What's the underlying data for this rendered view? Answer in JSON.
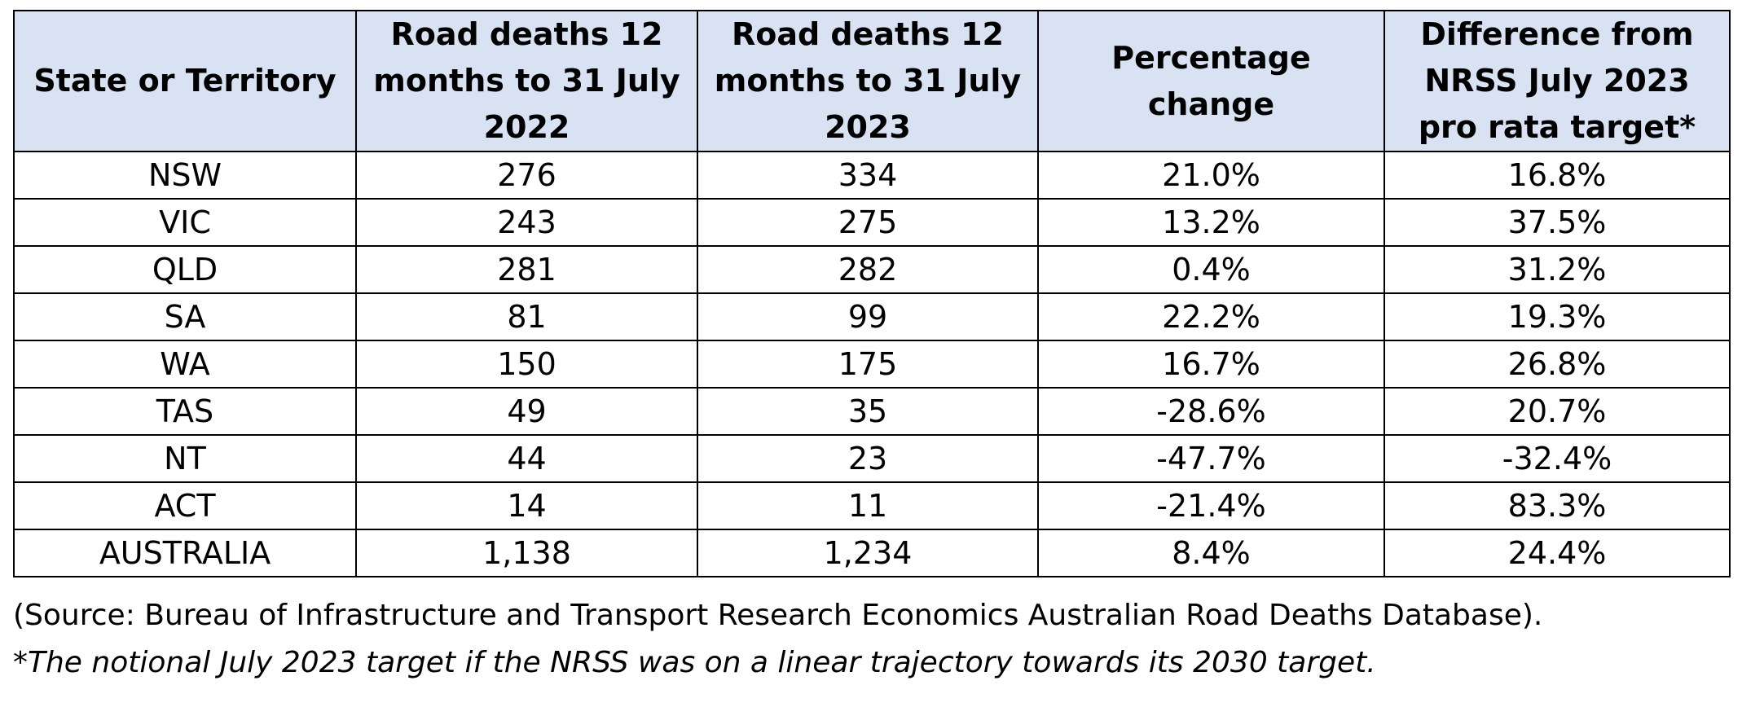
{
  "table": {
    "headers": [
      "State or Territory",
      "Road deaths 12 months to 31 July 2022",
      "Road deaths 12 months to 31 July 2023",
      "Percentage change",
      "Difference from NRSS July 2023 pro rata target*"
    ],
    "rows": [
      [
        "NSW",
        "276",
        "334",
        "21.0%",
        "16.8%"
      ],
      [
        "VIC",
        "243",
        "275",
        "13.2%",
        "37.5%"
      ],
      [
        "QLD",
        "281",
        "282",
        "0.4%",
        "31.2%"
      ],
      [
        "SA",
        "81",
        "99",
        "22.2%",
        "19.3%"
      ],
      [
        "WA",
        "150",
        "175",
        "16.7%",
        "26.8%"
      ],
      [
        "TAS",
        "49",
        "35",
        "-28.6%",
        "20.7%"
      ],
      [
        "NT",
        "44",
        "23",
        "-47.7%",
        "-32.4%"
      ],
      [
        "ACT",
        "14",
        "11",
        "-21.4%",
        "83.3%"
      ],
      [
        "AUSTRALIA",
        "1,138",
        "1,234",
        "8.4%",
        "24.4%"
      ]
    ]
  },
  "notes": {
    "source": "(Source: Bureau of Infrastructure and Transport Research Economics Australian Road Deaths Database).",
    "footnote": "*The notional July 2023 target if the NRSS was on a linear trajectory towards its 2030 target."
  },
  "colors": {
    "header_background": "#d9e2f3",
    "border": "#000000"
  }
}
